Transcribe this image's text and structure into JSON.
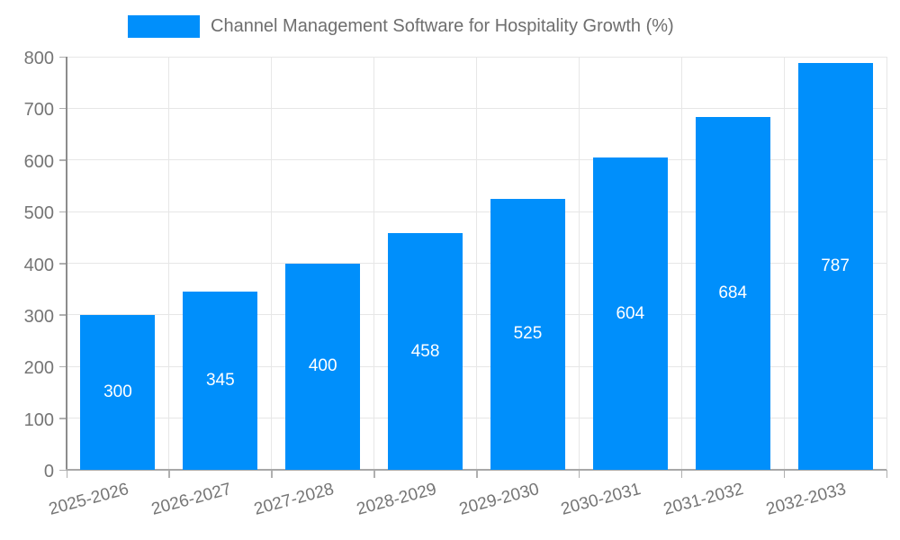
{
  "chart_data": {
    "type": "bar",
    "title": "Channel Management Software for Hospitality Growth (%)",
    "categories": [
      "2025-2026",
      "2026-2027",
      "2027-2028",
      "2028-2029",
      "2029-2030",
      "2030-2031",
      "2031-2032",
      "2032-2033"
    ],
    "series": [
      {
        "name": "Channel Management Software for Hospitality Growth (%)",
        "values": [
          300,
          345,
          400,
          458,
          525,
          604,
          684,
          787
        ]
      }
    ],
    "values": [
      300,
      345,
      400,
      458,
      525,
      604,
      684,
      787
    ],
    "xlabel": "",
    "ylabel": "",
    "ylim": [
      0,
      800
    ],
    "ytick_step": 100,
    "yticks": [
      0,
      100,
      200,
      300,
      400,
      500,
      600,
      700,
      800
    ],
    "grid": true,
    "legend_position": "top-left",
    "colors": {
      "bar": "#008FFB",
      "value_label": "#FFFFFF",
      "grid_line": "#E7E7E7",
      "y_axis_line": "#8C8C8C",
      "x_axis_line": "#A8A8A8",
      "tick_mark": "#B0B0B0",
      "axis_text": "#757575",
      "title_text": "#6E6E6E",
      "background": "#FFFFFF"
    }
  }
}
